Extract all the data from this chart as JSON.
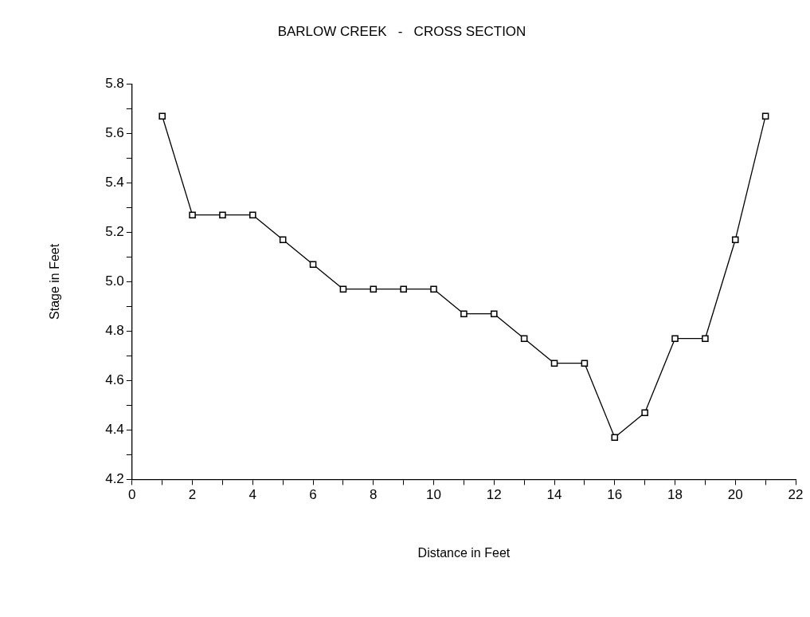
{
  "chart_data": {
    "type": "line",
    "title": "BARLOW CREEK   -   CROSS SECTION",
    "xlabel": "Distance in Feet",
    "ylabel": "Stage in Feet",
    "x": [
      1,
      2,
      3,
      4,
      5,
      6,
      7,
      8,
      9,
      10,
      11,
      12,
      13,
      14,
      15,
      16,
      17,
      18,
      19,
      20,
      21
    ],
    "series": [
      {
        "color": "#000000",
        "values": [
          5.67,
          5.27,
          5.27,
          5.27,
          5.17,
          5.07,
          4.97,
          4.97,
          4.97,
          4.97,
          4.87,
          4.87,
          4.77,
          4.67,
          4.67,
          4.37,
          4.47,
          4.77,
          4.77,
          5.17,
          5.67
        ]
      }
    ],
    "xlim": [
      0,
      22
    ],
    "xticks": [
      0,
      {
        "value": 1,
        "label": null
      },
      2,
      {
        "value": 3,
        "label": null
      },
      4,
      {
        "value": 5,
        "label": null
      },
      6,
      {
        "value": 7,
        "label": null
      },
      8,
      {
        "value": 9,
        "label": null
      },
      10,
      {
        "value": 11,
        "label": null
      },
      12,
      {
        "value": 13,
        "label": null
      },
      14,
      {
        "value": 15,
        "label": null
      },
      16,
      {
        "value": 17,
        "label": null
      },
      18,
      {
        "value": 19,
        "label": null
      },
      20,
      {
        "value": 21,
        "label": null
      },
      22
    ],
    "ylim": [
      4.2,
      5.8
    ],
    "yticks": [
      4.2,
      {
        "value": 4.3,
        "label": null
      },
      4.4,
      {
        "value": 4.5,
        "label": null
      },
      4.6,
      {
        "value": 4.7,
        "label": null
      },
      4.8,
      {
        "value": 4.9,
        "label": null
      },
      {
        "value": 5.0,
        "label": "5.0"
      },
      {
        "value": 5.1,
        "label": null
      },
      5.2,
      {
        "value": 5.3,
        "label": null
      },
      5.4,
      {
        "value": 5.5,
        "label": null
      },
      5.6,
      {
        "value": 5.7,
        "label": null
      },
      5.8
    ],
    "grid": false,
    "legend": false,
    "marker": "square",
    "line_style": "solid"
  }
}
